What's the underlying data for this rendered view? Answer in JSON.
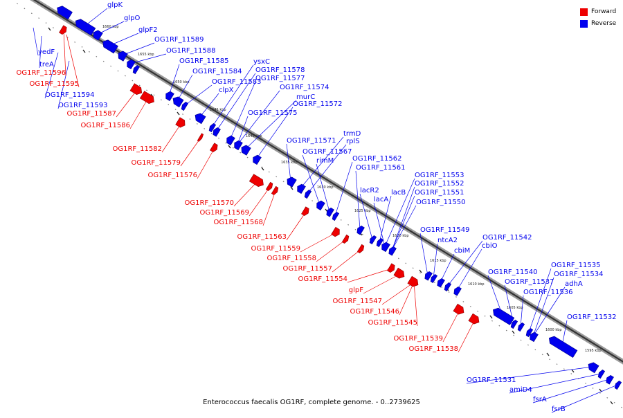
{
  "caption": "Enterococcus faecalis OG1RF, complete genome. - 0..2739625",
  "colors": {
    "forward": "#ee0000",
    "reverse": "#0000ee"
  },
  "legend": [
    {
      "label": "Forward",
      "color": "#ee0000"
    },
    {
      "label": "Reverse",
      "color": "#0000ee"
    }
  ],
  "scale_labels": [
    "1660 kbp",
    "1655 kbp",
    "1650 kbp",
    "1645 kbp",
    "1640 kbp",
    "1635 kbp",
    "1630 kbp",
    "1625 kbp",
    "1620 kbp",
    "1615 kbp",
    "1610 kbp",
    "1605 kbp",
    "1600 kbp",
    "1595 kbp"
  ],
  "features": {
    "reverse": [
      {
        "name": "glpK"
      },
      {
        "name": "glpO"
      },
      {
        "name": "glpF2"
      },
      {
        "name": "OG1RF_11589"
      },
      {
        "name": "OG1RF_11588"
      },
      {
        "name": "yedF"
      },
      {
        "name": "treA"
      },
      {
        "name": "OG1RF_11594"
      },
      {
        "name": "OG1RF_11593"
      },
      {
        "name": "OG1RF_11585"
      },
      {
        "name": "OG1RF_11584"
      },
      {
        "name": "OG1RF_11583"
      },
      {
        "name": "clpX"
      },
      {
        "name": "ysxC"
      },
      {
        "name": "OG1RF_11578"
      },
      {
        "name": "OG1RF_11577"
      },
      {
        "name": "OG1RF_11574"
      },
      {
        "name": "murC"
      },
      {
        "name": "OG1RF_11572"
      },
      {
        "name": "OG1RF_11575"
      },
      {
        "name": "OG1RF_11571"
      },
      {
        "name": "trmD"
      },
      {
        "name": "rplS"
      },
      {
        "name": "OG1RF_11567"
      },
      {
        "name": "rimM"
      },
      {
        "name": "OG1RF_11562"
      },
      {
        "name": "OG1RF_11561"
      },
      {
        "name": "lacR2"
      },
      {
        "name": "lacB"
      },
      {
        "name": "lacA"
      },
      {
        "name": "OG1RF_11553"
      },
      {
        "name": "OG1RF_11552"
      },
      {
        "name": "OG1RF_11551"
      },
      {
        "name": "OG1RF_11550"
      },
      {
        "name": "OG1RF_11549"
      },
      {
        "name": "ntcA2"
      },
      {
        "name": "cbiM"
      },
      {
        "name": "OG1RF_11542"
      },
      {
        "name": "cbiO"
      },
      {
        "name": "OG1RF_11540"
      },
      {
        "name": "OG1RF_11537"
      },
      {
        "name": "OG1RF_11536"
      },
      {
        "name": "OG1RF_11535"
      },
      {
        "name": "OG1RF_11534"
      },
      {
        "name": "adhA"
      },
      {
        "name": "OG1RF_11532"
      },
      {
        "name": "OG1RF_11531"
      },
      {
        "name": "amiD4"
      },
      {
        "name": "fsrA"
      },
      {
        "name": "fsrB"
      }
    ],
    "forward": [
      {
        "name": "OG1RF_11596"
      },
      {
        "name": "OG1RF_11595"
      },
      {
        "name": "OG1RF_11587"
      },
      {
        "name": "OG1RF_11586"
      },
      {
        "name": "OG1RF_11582"
      },
      {
        "name": "OG1RF_11579"
      },
      {
        "name": "OG1RF_11576"
      },
      {
        "name": "OG1RF_11570"
      },
      {
        "name": "OG1RF_11569"
      },
      {
        "name": "OG1RF_11568"
      },
      {
        "name": "OG1RF_11563"
      },
      {
        "name": "OG1RF_11559"
      },
      {
        "name": "OG1RF_11558"
      },
      {
        "name": "OG1RF_11557"
      },
      {
        "name": "OG1RF_11554"
      },
      {
        "name": "glpF"
      },
      {
        "name": "OG1RF_11547"
      },
      {
        "name": "OG1RF_11546"
      },
      {
        "name": "OG1RF_11545"
      },
      {
        "name": "OG1RF_11539"
      },
      {
        "name": "OG1RF_11538"
      }
    ]
  }
}
